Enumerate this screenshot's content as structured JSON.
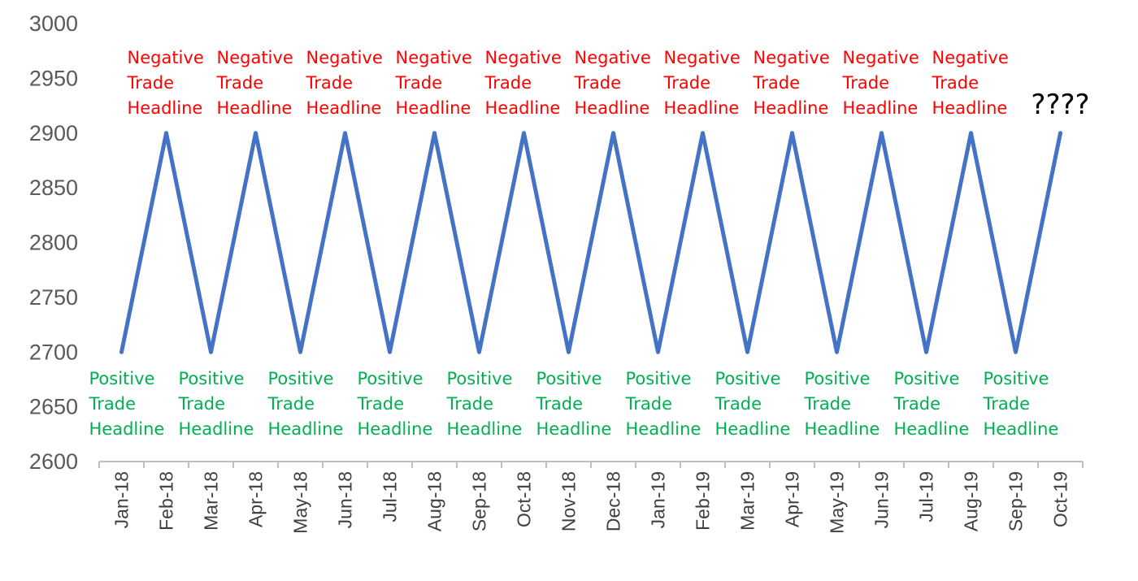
{
  "chart_data": {
    "type": "line",
    "title": "",
    "xlabel": "",
    "ylabel": "",
    "ylim": [
      2600,
      3000
    ],
    "yticks": [
      "3000",
      "2950",
      "2900",
      "2850",
      "2800",
      "2750",
      "2700",
      "2650",
      "2600"
    ],
    "categories": [
      "Jan-18",
      "Feb-18",
      "Mar-18",
      "Apr-18",
      "May-18",
      "Jun-18",
      "Jul-18",
      "Aug-18",
      "Sep-18",
      "Oct-18",
      "Nov-18",
      "Dec-18",
      "Jan-19",
      "Feb-19",
      "Mar-19",
      "Apr-19",
      "May-19",
      "Jun-19",
      "Jul-19",
      "Aug-19",
      "Sep-19",
      "Oct-19"
    ],
    "series": [
      {
        "values": [
          2700,
          2900,
          2700,
          2900,
          2700,
          2900,
          2700,
          2900,
          2700,
          2900,
          2700,
          2900,
          2700,
          2900,
          2700,
          2900,
          2700,
          2900,
          2700,
          2900,
          2700,
          2900
        ],
        "color": "#4472c4"
      }
    ],
    "grid": false,
    "legend": "none",
    "annotations": {
      "negative": {
        "lines": [
          "Negative",
          "Trade",
          "Headline"
        ],
        "color": "#ff0000",
        "count": 10
      },
      "positive": {
        "lines": [
          "Positive",
          "Trade",
          "Headline"
        ],
        "color": "#00b050",
        "count": 11
      },
      "question": "????"
    }
  }
}
